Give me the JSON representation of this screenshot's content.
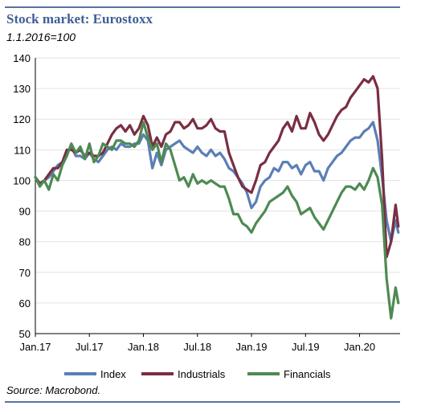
{
  "header": {
    "title": "Stock market: Eurostoxx",
    "subtitle": "1.1.2016=100"
  },
  "footer": {
    "source": "Source: Macrobond."
  },
  "chart_data": {
    "type": "line",
    "title": "Stock market: Eurostoxx",
    "subtitle": "1.1.2016=100",
    "xlabel": "",
    "ylabel": "",
    "ylim": [
      50,
      140
    ],
    "yticks": [
      50,
      60,
      70,
      80,
      90,
      100,
      110,
      120,
      130,
      140
    ],
    "xlim": [
      0,
      40.5
    ],
    "xticks": [
      {
        "label": "Jan.17",
        "x": 0
      },
      {
        "label": "Jul.17",
        "x": 6
      },
      {
        "label": "Jan.18",
        "x": 12
      },
      {
        "label": "Jul.18",
        "x": 18
      },
      {
        "label": "Jan.19",
        "x": 24
      },
      {
        "label": "Jul.19",
        "x": 30
      },
      {
        "label": "Jan.20",
        "x": 36
      }
    ],
    "x_unit": "months since Jan.17",
    "grid": "horizontal",
    "legend": "bottom",
    "series": [
      {
        "name": "Index",
        "color": "#5b7fb5",
        "points": [
          [
            0,
            101
          ],
          [
            0.5,
            99
          ],
          [
            1,
            100
          ],
          [
            1.5,
            101
          ],
          [
            2,
            103
          ],
          [
            2.5,
            105
          ],
          [
            3,
            106
          ],
          [
            3.5,
            109
          ],
          [
            4,
            111
          ],
          [
            4.5,
            108
          ],
          [
            5,
            108
          ],
          [
            5.5,
            107
          ],
          [
            6,
            109
          ],
          [
            6.5,
            107
          ],
          [
            7,
            106
          ],
          [
            7.5,
            108
          ],
          [
            8,
            110
          ],
          [
            8.5,
            111
          ],
          [
            9,
            110
          ],
          [
            9.5,
            112
          ],
          [
            10,
            111
          ],
          [
            10.5,
            111
          ],
          [
            11,
            112
          ],
          [
            11.5,
            112
          ],
          [
            12,
            115
          ],
          [
            12.5,
            113
          ],
          [
            13,
            104
          ],
          [
            13.5,
            109
          ],
          [
            14,
            105
          ],
          [
            14.5,
            110
          ],
          [
            15,
            111
          ],
          [
            15.5,
            112
          ],
          [
            16,
            113
          ],
          [
            16.5,
            111
          ],
          [
            17,
            110
          ],
          [
            17.5,
            109
          ],
          [
            18,
            111
          ],
          [
            18.5,
            109
          ],
          [
            19,
            108
          ],
          [
            19.5,
            110
          ],
          [
            20,
            108
          ],
          [
            20.5,
            109
          ],
          [
            21,
            107
          ],
          [
            21.5,
            104
          ],
          [
            22,
            103
          ],
          [
            22.5,
            101
          ],
          [
            23,
            99
          ],
          [
            23.5,
            96
          ],
          [
            24,
            91
          ],
          [
            24.5,
            93
          ],
          [
            25,
            98
          ],
          [
            25.5,
            100
          ],
          [
            26,
            101
          ],
          [
            26.5,
            104
          ],
          [
            27,
            103
          ],
          [
            27.5,
            106
          ],
          [
            28,
            106
          ],
          [
            28.5,
            104
          ],
          [
            29,
            105
          ],
          [
            29.5,
            102
          ],
          [
            30,
            105
          ],
          [
            30.5,
            106
          ],
          [
            31,
            103
          ],
          [
            31.5,
            103
          ],
          [
            32,
            100
          ],
          [
            32.5,
            104
          ],
          [
            33,
            106
          ],
          [
            33.5,
            108
          ],
          [
            34,
            109
          ],
          [
            34.5,
            111
          ],
          [
            35,
            113
          ],
          [
            35.5,
            114
          ],
          [
            36,
            114
          ],
          [
            36.5,
            116
          ],
          [
            37,
            117
          ],
          [
            37.5,
            119
          ],
          [
            38,
            113
          ],
          [
            38.5,
            101
          ],
          [
            39,
            87
          ],
          [
            39.5,
            80
          ],
          [
            40,
            87
          ],
          [
            40.3,
            83
          ]
        ]
      },
      {
        "name": "Industrials",
        "color": "#7a2e42",
        "points": [
          [
            0,
            101
          ],
          [
            0.5,
            99
          ],
          [
            1,
            100
          ],
          [
            1.5,
            102
          ],
          [
            2,
            104
          ],
          [
            2.5,
            104
          ],
          [
            3,
            106
          ],
          [
            3.5,
            110
          ],
          [
            4,
            110
          ],
          [
            4.5,
            109
          ],
          [
            5,
            110
          ],
          [
            5.5,
            108
          ],
          [
            6,
            109
          ],
          [
            6.5,
            108
          ],
          [
            7,
            108
          ],
          [
            7.5,
            109
          ],
          [
            8,
            112
          ],
          [
            8.5,
            115
          ],
          [
            9,
            117
          ],
          [
            9.5,
            118
          ],
          [
            10,
            116
          ],
          [
            10.5,
            118
          ],
          [
            11,
            115
          ],
          [
            11.5,
            117
          ],
          [
            12,
            121
          ],
          [
            12.5,
            118
          ],
          [
            13,
            111
          ],
          [
            13.5,
            114
          ],
          [
            14,
            111
          ],
          [
            14.5,
            115
          ],
          [
            15,
            116
          ],
          [
            15.5,
            119
          ],
          [
            16,
            119
          ],
          [
            16.5,
            117
          ],
          [
            17,
            118
          ],
          [
            17.5,
            120
          ],
          [
            18,
            117
          ],
          [
            18.5,
            117
          ],
          [
            19,
            118
          ],
          [
            19.5,
            120
          ],
          [
            20,
            117
          ],
          [
            20.5,
            116
          ],
          [
            21,
            116
          ],
          [
            21.5,
            109
          ],
          [
            22,
            105
          ],
          [
            22.5,
            101
          ],
          [
            23,
            98
          ],
          [
            23.5,
            97
          ],
          [
            24,
            96
          ],
          [
            24.5,
            100
          ],
          [
            25,
            105
          ],
          [
            25.5,
            106
          ],
          [
            26,
            109
          ],
          [
            26.5,
            111
          ],
          [
            27,
            113
          ],
          [
            27.5,
            117
          ],
          [
            28,
            119
          ],
          [
            28.5,
            116
          ],
          [
            29,
            121
          ],
          [
            29.5,
            117
          ],
          [
            30,
            117
          ],
          [
            30.5,
            122
          ],
          [
            31,
            119
          ],
          [
            31.5,
            115
          ],
          [
            32,
            113
          ],
          [
            32.5,
            115
          ],
          [
            33,
            118
          ],
          [
            33.5,
            121
          ],
          [
            34,
            123
          ],
          [
            34.5,
            124
          ],
          [
            35,
            127
          ],
          [
            35.5,
            129
          ],
          [
            36,
            131
          ],
          [
            36.5,
            133
          ],
          [
            37,
            132
          ],
          [
            37.5,
            134
          ],
          [
            38,
            130
          ],
          [
            38.5,
            107
          ],
          [
            39,
            75
          ],
          [
            39.5,
            80
          ],
          [
            40,
            92
          ],
          [
            40.3,
            85
          ]
        ]
      },
      {
        "name": "Financials",
        "color": "#4e8a52",
        "points": [
          [
            0,
            101
          ],
          [
            0.5,
            98
          ],
          [
            1,
            100
          ],
          [
            1.5,
            97
          ],
          [
            2,
            102
          ],
          [
            2.5,
            100
          ],
          [
            3,
            105
          ],
          [
            3.5,
            108
          ],
          [
            4,
            112
          ],
          [
            4.5,
            109
          ],
          [
            5,
            111
          ],
          [
            5.5,
            107
          ],
          [
            6,
            112
          ],
          [
            6.5,
            106
          ],
          [
            7,
            108
          ],
          [
            7.5,
            112
          ],
          [
            8,
            111
          ],
          [
            8.5,
            110
          ],
          [
            9,
            113
          ],
          [
            9.5,
            113
          ],
          [
            10,
            112
          ],
          [
            10.5,
            112
          ],
          [
            11,
            111
          ],
          [
            11.5,
            113
          ],
          [
            12,
            119
          ],
          [
            12.5,
            114
          ],
          [
            13,
            110
          ],
          [
            13.5,
            112
          ],
          [
            14,
            106
          ],
          [
            14.5,
            112
          ],
          [
            15,
            110
          ],
          [
            15.5,
            105
          ],
          [
            16,
            100
          ],
          [
            16.5,
            101
          ],
          [
            17,
            98
          ],
          [
            17.5,
            102
          ],
          [
            18,
            99
          ],
          [
            18.5,
            100
          ],
          [
            19,
            99
          ],
          [
            19.5,
            100
          ],
          [
            20,
            99
          ],
          [
            20.5,
            98
          ],
          [
            21,
            98
          ],
          [
            21.5,
            94
          ],
          [
            22,
            89
          ],
          [
            22.5,
            89
          ],
          [
            23,
            86
          ],
          [
            23.5,
            85
          ],
          [
            24,
            83
          ],
          [
            24.5,
            86
          ],
          [
            25,
            88
          ],
          [
            25.5,
            90
          ],
          [
            26,
            93
          ],
          [
            26.5,
            94
          ],
          [
            27,
            95
          ],
          [
            27.5,
            96
          ],
          [
            28,
            98
          ],
          [
            28.5,
            95
          ],
          [
            29,
            93
          ],
          [
            29.5,
            89
          ],
          [
            30,
            90
          ],
          [
            30.5,
            91
          ],
          [
            31,
            88
          ],
          [
            31.5,
            86
          ],
          [
            32,
            84
          ],
          [
            32.5,
            87
          ],
          [
            33,
            90
          ],
          [
            33.5,
            93
          ],
          [
            34,
            96
          ],
          [
            34.5,
            98
          ],
          [
            35,
            98
          ],
          [
            35.5,
            97
          ],
          [
            36,
            99
          ],
          [
            36.5,
            97
          ],
          [
            37,
            100
          ],
          [
            37.5,
            104
          ],
          [
            38,
            101
          ],
          [
            38.5,
            92
          ],
          [
            39,
            68
          ],
          [
            39.5,
            55
          ],
          [
            40,
            65
          ],
          [
            40.3,
            60
          ]
        ]
      }
    ]
  }
}
